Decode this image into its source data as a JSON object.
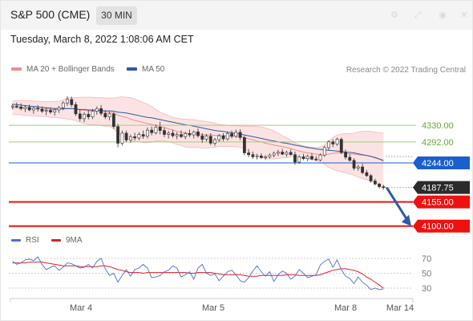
{
  "header": {
    "symbol": "S&P 500 (CME)",
    "timeframe": "30 MIN",
    "datetime": "Tuesday, March 8, 2022 1:08:06 AM CET",
    "icons": [
      "settings-icon",
      "expand-icon",
      "camera-icon",
      "close-icon"
    ]
  },
  "legend": {
    "ma20": {
      "label": "MA 20 + Bollinger Bands",
      "color": "#f08c8c"
    },
    "ma50": {
      "label": "MA 50",
      "color": "#2c5aa0"
    },
    "credit": "Research © 2022 Trading Central"
  },
  "rsi_legend": {
    "rsi": {
      "label": "RSI",
      "color": "#4a6fd8"
    },
    "ma9": {
      "label": "9MA",
      "color": "#e02020"
    }
  },
  "chart_data": [
    {
      "type": "candlestick",
      "title": "S&P 500 (CME)",
      "interval": "30 MIN",
      "x_labels": [
        "Mar 4",
        "Mar 5",
        "Mar 8",
        "Mar 14"
      ],
      "ylim": [
        4083,
        4440
      ],
      "grid": false,
      "legend_position": "top-left",
      "last_price": {
        "value": "4187.75",
        "color": "#2b2b2b"
      },
      "levels": [
        {
          "label": "4330.00",
          "value": 4330,
          "kind": "resistance",
          "color": "#9dcf7a",
          "label_color": "#6aa83a"
        },
        {
          "label": "4292.00",
          "value": 4292,
          "kind": "resistance",
          "color": "#9dcf7a",
          "label_color": "#6aa83a"
        },
        {
          "label": "4244.00",
          "value": 4244,
          "kind": "pivot",
          "color": "#1a5fd0",
          "label_color": "#ffffff"
        },
        {
          "label": "4155.00",
          "value": 4155,
          "kind": "support",
          "color": "#f01010",
          "label_color": "#ffffff"
        },
        {
          "label": "4100.00",
          "value": 4100,
          "kind": "support",
          "color": "#f01010",
          "label_color": "#ffffff"
        }
      ],
      "candle_colors": {
        "up": "#ffffff",
        "down": "#333333",
        "wick": "#444444"
      },
      "candles": [
        [
          4372,
          4379,
          4366,
          4374
        ],
        [
          4374,
          4382,
          4369,
          4372
        ],
        [
          4372,
          4380,
          4364,
          4368
        ],
        [
          4368,
          4376,
          4360,
          4371
        ],
        [
          4371,
          4377,
          4362,
          4365
        ],
        [
          4365,
          4372,
          4356,
          4369
        ],
        [
          4369,
          4376,
          4361,
          4367
        ],
        [
          4367,
          4373,
          4358,
          4362
        ],
        [
          4362,
          4370,
          4353,
          4364
        ],
        [
          4364,
          4371,
          4356,
          4360
        ],
        [
          4360,
          4368,
          4352,
          4365
        ],
        [
          4365,
          4374,
          4358,
          4370
        ],
        [
          4370,
          4385,
          4364,
          4381
        ],
        [
          4381,
          4396,
          4374,
          4389
        ],
        [
          4389,
          4395,
          4372,
          4377
        ],
        [
          4377,
          4383,
          4351,
          4356
        ],
        [
          4356,
          4366,
          4339,
          4345
        ],
        [
          4345,
          4360,
          4337,
          4355
        ],
        [
          4355,
          4364,
          4343,
          4349
        ],
        [
          4349,
          4367,
          4344,
          4362
        ],
        [
          4362,
          4373,
          4354,
          4368
        ],
        [
          4368,
          4376,
          4352,
          4357
        ],
        [
          4357,
          4364,
          4344,
          4349
        ],
        [
          4349,
          4361,
          4341,
          4356
        ],
        [
          4356,
          4360,
          4322,
          4327
        ],
        [
          4327,
          4333,
          4280,
          4289
        ],
        [
          4289,
          4318,
          4284,
          4312
        ],
        [
          4312,
          4318,
          4291,
          4296
        ],
        [
          4296,
          4309,
          4290,
          4304
        ],
        [
          4304,
          4313,
          4295,
          4301
        ],
        [
          4301,
          4314,
          4296,
          4309
        ],
        [
          4309,
          4318,
          4299,
          4305
        ],
        [
          4305,
          4325,
          4300,
          4319
        ],
        [
          4319,
          4327,
          4307,
          4313
        ],
        [
          4313,
          4332,
          4309,
          4326
        ],
        [
          4326,
          4338,
          4309,
          4318
        ],
        [
          4318,
          4325,
          4303,
          4309
        ],
        [
          4309,
          4317,
          4300,
          4312
        ],
        [
          4312,
          4320,
          4302,
          4306
        ],
        [
          4306,
          4314,
          4298,
          4309
        ],
        [
          4309,
          4318,
          4301,
          4304
        ],
        [
          4304,
          4315,
          4298,
          4311
        ],
        [
          4311,
          4320,
          4303,
          4308
        ],
        [
          4308,
          4318,
          4300,
          4315
        ],
        [
          4315,
          4323,
          4302,
          4306
        ],
        [
          4306,
          4312,
          4290,
          4298
        ],
        [
          4298,
          4310,
          4293,
          4305
        ],
        [
          4305,
          4312,
          4285,
          4289
        ],
        [
          4289,
          4301,
          4283,
          4297
        ],
        [
          4297,
          4310,
          4292,
          4306
        ],
        [
          4306,
          4312,
          4294,
          4299
        ],
        [
          4299,
          4316,
          4295,
          4311
        ],
        [
          4311,
          4318,
          4300,
          4305
        ],
        [
          4305,
          4320,
          4301,
          4314
        ],
        [
          4314,
          4321,
          4296,
          4302
        ],
        [
          4302,
          4306,
          4262,
          4267
        ],
        [
          4267,
          4276,
          4257,
          4263
        ],
        [
          4263,
          4270,
          4253,
          4258
        ],
        [
          4258,
          4265,
          4252,
          4260
        ],
        [
          4260,
          4266,
          4253,
          4256
        ],
        [
          4256,
          4262,
          4251,
          4258
        ],
        [
          4258,
          4266,
          4254,
          4262
        ],
        [
          4262,
          4270,
          4257,
          4266
        ],
        [
          4266,
          4274,
          4260,
          4269
        ],
        [
          4269,
          4276,
          4262,
          4264
        ],
        [
          4264,
          4272,
          4258,
          4268
        ],
        [
          4268,
          4275,
          4261,
          4263
        ],
        [
          4263,
          4270,
          4240,
          4246
        ],
        [
          4246,
          4262,
          4242,
          4258
        ],
        [
          4258,
          4265,
          4250,
          4254
        ],
        [
          4254,
          4263,
          4248,
          4259
        ],
        [
          4259,
          4266,
          4250,
          4253
        ],
        [
          4253,
          4260,
          4248,
          4251
        ],
        [
          4251,
          4266,
          4248,
          4262
        ],
        [
          4262,
          4283,
          4258,
          4279
        ],
        [
          4279,
          4296,
          4272,
          4292
        ],
        [
          4292,
          4298,
          4280,
          4287
        ],
        [
          4287,
          4302,
          4283,
          4298
        ],
        [
          4298,
          4302,
          4264,
          4268
        ],
        [
          4268,
          4275,
          4252,
          4257
        ],
        [
          4257,
          4264,
          4247,
          4250
        ],
        [
          4250,
          4255,
          4227,
          4232
        ],
        [
          4232,
          4240,
          4226,
          4235
        ],
        [
          4235,
          4242,
          4218,
          4222
        ],
        [
          4222,
          4228,
          4212,
          4215
        ],
        [
          4215,
          4219,
          4199,
          4203
        ],
        [
          4203,
          4208,
          4193,
          4196
        ],
        [
          4196,
          4199,
          4186,
          4190
        ],
        [
          4190,
          4194,
          4184,
          4188
        ]
      ],
      "ma20": [
        4370,
        4370,
        4370,
        4369,
        4369,
        4368,
        4368,
        4367,
        4367,
        4366,
        4366,
        4366,
        4367,
        4368,
        4368,
        4367,
        4365,
        4364,
        4363,
        4363,
        4362,
        4361,
        4360,
        4360,
        4357,
        4353,
        4350,
        4348,
        4344,
        4341,
        4339,
        4336,
        4334,
        4332,
        4330,
        4327,
        4325,
        4322,
        4319,
        4316,
        4314,
        4312,
        4311,
        4311,
        4310,
        4309,
        4308,
        4308,
        4307,
        4307,
        4306,
        4306,
        4305,
        4305,
        4304,
        4302,
        4299,
        4297,
        4294,
        4292,
        4289,
        4287,
        4285,
        4283,
        4281,
        4279,
        4277,
        4274,
        4271,
        4269,
        4267,
        4266,
        4264,
        4263,
        4263,
        4264,
        4266,
        4267,
        4267,
        4266,
        4265,
        4264,
        4263,
        4262,
        4261,
        4259,
        4257,
        4253,
        4247
      ],
      "bb_upper": [
        4385,
        4386,
        4386,
        4386,
        4386,
        4385,
        4385,
        4384,
        4384,
        4384,
        4384,
        4385,
        4388,
        4392,
        4393,
        4393,
        4394,
        4394,
        4394,
        4394,
        4393,
        4393,
        4392,
        4392,
        4392,
        4394,
        4395,
        4394,
        4393,
        4390,
        4386,
        4382,
        4378,
        4373,
        4366,
        4360,
        4356,
        4352,
        4348,
        4346,
        4344,
        4344,
        4343,
        4343,
        4341,
        4340,
        4338,
        4337,
        4335,
        4332,
        4331,
        4330,
        4329,
        4329,
        4328,
        4328,
        4328,
        4328,
        4327,
        4326,
        4324,
        4321,
        4317,
        4312,
        4306,
        4302,
        4296,
        4290,
        4286,
        4283,
        4281,
        4280,
        4279,
        4280,
        4285,
        4294,
        4302,
        4308,
        4310,
        4311,
        4311,
        4312,
        4314,
        4316,
        4316,
        4316,
        4314,
        4313,
        4312
      ],
      "bb_lower": [
        4355,
        4354,
        4354,
        4352,
        4352,
        4351,
        4351,
        4350,
        4350,
        4348,
        4348,
        4347,
        4346,
        4344,
        4343,
        4341,
        4336,
        4334,
        4332,
        4332,
        4331,
        4329,
        4328,
        4328,
        4322,
        4312,
        4305,
        4302,
        4295,
        4292,
        4292,
        4290,
        4290,
        4291,
        4294,
        4294,
        4294,
        4292,
        4290,
        4286,
        4284,
        4280,
        4279,
        4279,
        4279,
        4278,
        4278,
        4279,
        4279,
        4282,
        4281,
        4282,
        4281,
        4281,
        4280,
        4276,
        4270,
        4266,
        4261,
        4258,
        4254,
        4253,
        4253,
        4254,
        4256,
        4256,
        4258,
        4258,
        4256,
        4255,
        4253,
        4252,
        4249,
        4246,
        4241,
        4234,
        4230,
        4226,
        4224,
        4221,
        4219,
        4216,
        4212,
        4208,
        4206,
        4202,
        4200,
        4193,
        4182
      ],
      "ma50": [
        4378,
        4377,
        4376,
        4375,
        4374,
        4373,
        4372,
        4371,
        4370,
        4369,
        4368,
        4368,
        4368,
        4368,
        4368,
        4367,
        4366,
        4366,
        4365,
        4365,
        4364,
        4364,
        4363,
        4363,
        4362,
        4360,
        4359,
        4358,
        4356,
        4354,
        4352,
        4350,
        4348,
        4347,
        4345,
        4343,
        4341,
        4339,
        4337,
        4335,
        4333,
        4331,
        4330,
        4328,
        4326,
        4324,
        4322,
        4320,
        4318,
        4317,
        4316,
        4314,
        4313,
        4311,
        4310,
        4308,
        4306,
        4304,
        4302,
        4300,
        4298,
        4296,
        4294,
        4292,
        4290,
        4289,
        4287,
        4285,
        4283,
        4281,
        4279,
        4278,
        4276,
        4275,
        4274,
        4273,
        4272,
        4271,
        4270,
        4269,
        4268,
        4267,
        4265,
        4263,
        4261,
        4259,
        4256,
        4253,
        4250
      ],
      "forecast_arrow": {
        "from": 4187.75,
        "to": 4100,
        "color": "#2b5ca8"
      }
    },
    {
      "type": "line",
      "title": "RSI",
      "yticks": [
        70,
        50,
        30
      ],
      "ylim": [
        20,
        82
      ],
      "legend_position": "top-left",
      "series": [
        {
          "name": "RSI",
          "color": "#4a6fd8",
          "values": [
            66,
            62,
            64,
            68,
            69,
            67,
            72,
            62,
            55,
            58,
            60,
            54,
            58,
            64,
            63,
            60,
            57,
            58,
            62,
            57,
            66,
            70,
            56,
            47,
            50,
            38,
            47,
            55,
            46,
            55,
            57,
            62,
            57,
            44,
            45,
            47,
            52,
            54,
            60,
            57,
            45,
            48,
            52,
            42,
            57,
            62,
            50,
            47,
            49,
            40,
            46,
            52,
            54,
            48,
            40,
            38,
            44,
            53,
            60,
            52,
            46,
            52,
            39,
            48,
            53,
            50,
            42,
            46,
            55,
            50,
            44,
            46,
            48,
            61,
            66,
            69,
            58,
            68,
            55,
            46,
            43,
            36,
            45,
            38,
            34,
            28,
            30,
            28,
            29
          ]
        },
        {
          "name": "9MA",
          "color": "#e02020",
          "values": [
            64,
            64,
            64,
            64,
            65,
            65,
            65,
            65,
            64,
            63,
            62,
            61,
            60,
            60,
            60,
            60,
            59,
            59,
            59,
            59,
            59,
            60,
            60,
            59,
            57,
            55,
            54,
            52,
            51,
            51,
            51,
            50,
            51,
            51,
            51,
            51,
            51,
            51,
            51,
            51,
            51,
            51,
            50,
            50,
            51,
            51,
            51,
            51,
            50,
            49,
            48,
            48,
            48,
            48,
            48,
            47,
            46,
            46,
            46,
            47,
            47,
            47,
            47,
            47,
            47,
            48,
            48,
            48,
            47,
            47,
            47,
            47,
            47,
            48,
            50,
            52,
            54,
            55,
            56,
            56,
            55,
            54,
            52,
            49,
            45,
            42,
            38,
            34,
            30
          ]
        }
      ]
    }
  ]
}
